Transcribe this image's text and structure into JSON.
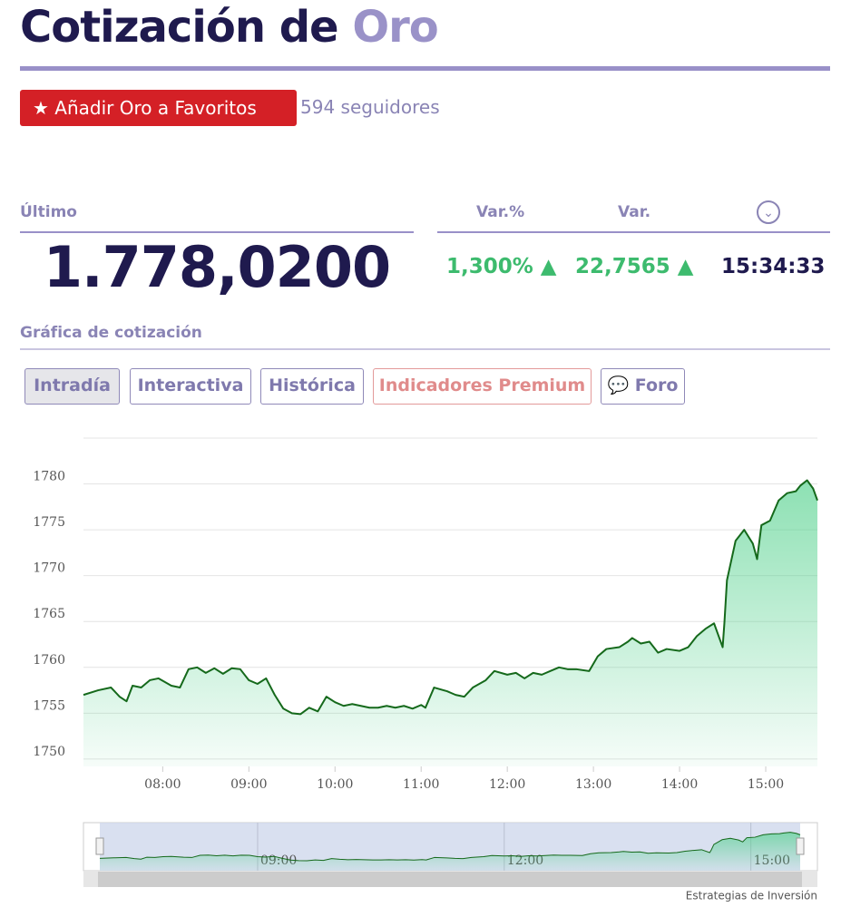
{
  "header": {
    "title": "Cotización de",
    "title_highlight": "Oro",
    "favorite_button": "Añadir Oro a Favoritos",
    "followers": "594 seguidores"
  },
  "quote": {
    "last_label": "Último",
    "last": "1.778,0200",
    "change_pct_label": "Var.%",
    "change_label": "Var.",
    "change_pct": "1,300%",
    "change": "22,7565",
    "time": "15:34:33"
  },
  "chart_section": {
    "title": "Gráfica de cotización",
    "tabs": [
      "Intradía",
      "Interactiva",
      "Histórica",
      "Indicadores Premium",
      "Foro"
    ]
  },
  "chart_data": {
    "type": "line",
    "color": "#15691b",
    "grid": true,
    "x": [
      7.08,
      7.25,
      7.4,
      7.5,
      7.58,
      7.65,
      7.75,
      7.85,
      7.95,
      8.1,
      8.2,
      8.3,
      8.4,
      8.5,
      8.6,
      8.7,
      8.8,
      8.9,
      9.0,
      9.1,
      9.2,
      9.3,
      9.4,
      9.5,
      9.6,
      9.7,
      9.8,
      9.9,
      10.0,
      10.1,
      10.2,
      10.3,
      10.4,
      10.5,
      10.6,
      10.7,
      10.8,
      10.9,
      11.0,
      11.05,
      11.15,
      11.3,
      11.4,
      11.5,
      11.6,
      11.75,
      11.85,
      12.0,
      12.1,
      12.2,
      12.3,
      12.4,
      12.5,
      12.6,
      12.7,
      12.8,
      12.95,
      13.05,
      13.15,
      13.3,
      13.4,
      13.45,
      13.55,
      13.65,
      13.75,
      13.85,
      14.0,
      14.1,
      14.2,
      14.3,
      14.4,
      14.5,
      14.52,
      14.55,
      14.65,
      14.75,
      14.85,
      14.9,
      14.95,
      15.05,
      15.15,
      15.25,
      15.35,
      15.4,
      15.48,
      15.55,
      15.6
    ],
    "values": [
      1757.0,
      1757.5,
      1757.8,
      1756.8,
      1756.3,
      1758.0,
      1757.8,
      1758.6,
      1758.8,
      1758.0,
      1757.8,
      1759.8,
      1760.0,
      1759.4,
      1759.9,
      1759.3,
      1759.9,
      1759.8,
      1758.6,
      1758.2,
      1758.8,
      1757.0,
      1755.5,
      1755.0,
      1754.9,
      1755.6,
      1755.2,
      1756.8,
      1756.2,
      1755.8,
      1756.0,
      1755.8,
      1755.6,
      1755.6,
      1755.8,
      1755.6,
      1755.8,
      1755.5,
      1755.9,
      1755.6,
      1757.8,
      1757.4,
      1757.0,
      1756.8,
      1757.8,
      1758.6,
      1759.6,
      1759.2,
      1759.4,
      1758.8,
      1759.4,
      1759.2,
      1759.6,
      1760.0,
      1759.8,
      1759.8,
      1759.6,
      1761.2,
      1762.0,
      1762.2,
      1762.8,
      1763.2,
      1762.6,
      1762.8,
      1761.6,
      1762.0,
      1761.8,
      1762.2,
      1763.4,
      1764.2,
      1764.8,
      1762.2,
      1764.8,
      1769.5,
      1773.8,
      1775.0,
      1773.5,
      1771.8,
      1775.5,
      1776.0,
      1778.2,
      1779.0,
      1779.2,
      1779.8,
      1780.4,
      1779.5,
      1778.2
    ],
    "xlim": [
      7.08,
      15.6
    ],
    "ylim": [
      1749.2,
      1785
    ],
    "xticks": [
      {
        "value": 8,
        "label": "08:00"
      },
      {
        "value": 9,
        "label": "09:00"
      },
      {
        "value": 10,
        "label": "10:00"
      },
      {
        "value": 11,
        "label": "11:00"
      },
      {
        "value": 12,
        "label": "12:00"
      },
      {
        "value": 13,
        "label": "13:00"
      },
      {
        "value": 14,
        "label": "14:00"
      },
      {
        "value": 15,
        "label": "15:00"
      }
    ],
    "yticks": [
      1750,
      1755,
      1760,
      1765,
      1770,
      1775,
      1780
    ],
    "navigator_ticks": [
      {
        "value": 9,
        "label": "09:00"
      },
      {
        "value": 12,
        "label": "12:00"
      },
      {
        "value": 15,
        "label": "15:00"
      }
    ],
    "credit": "Estrategias de Inversión"
  }
}
